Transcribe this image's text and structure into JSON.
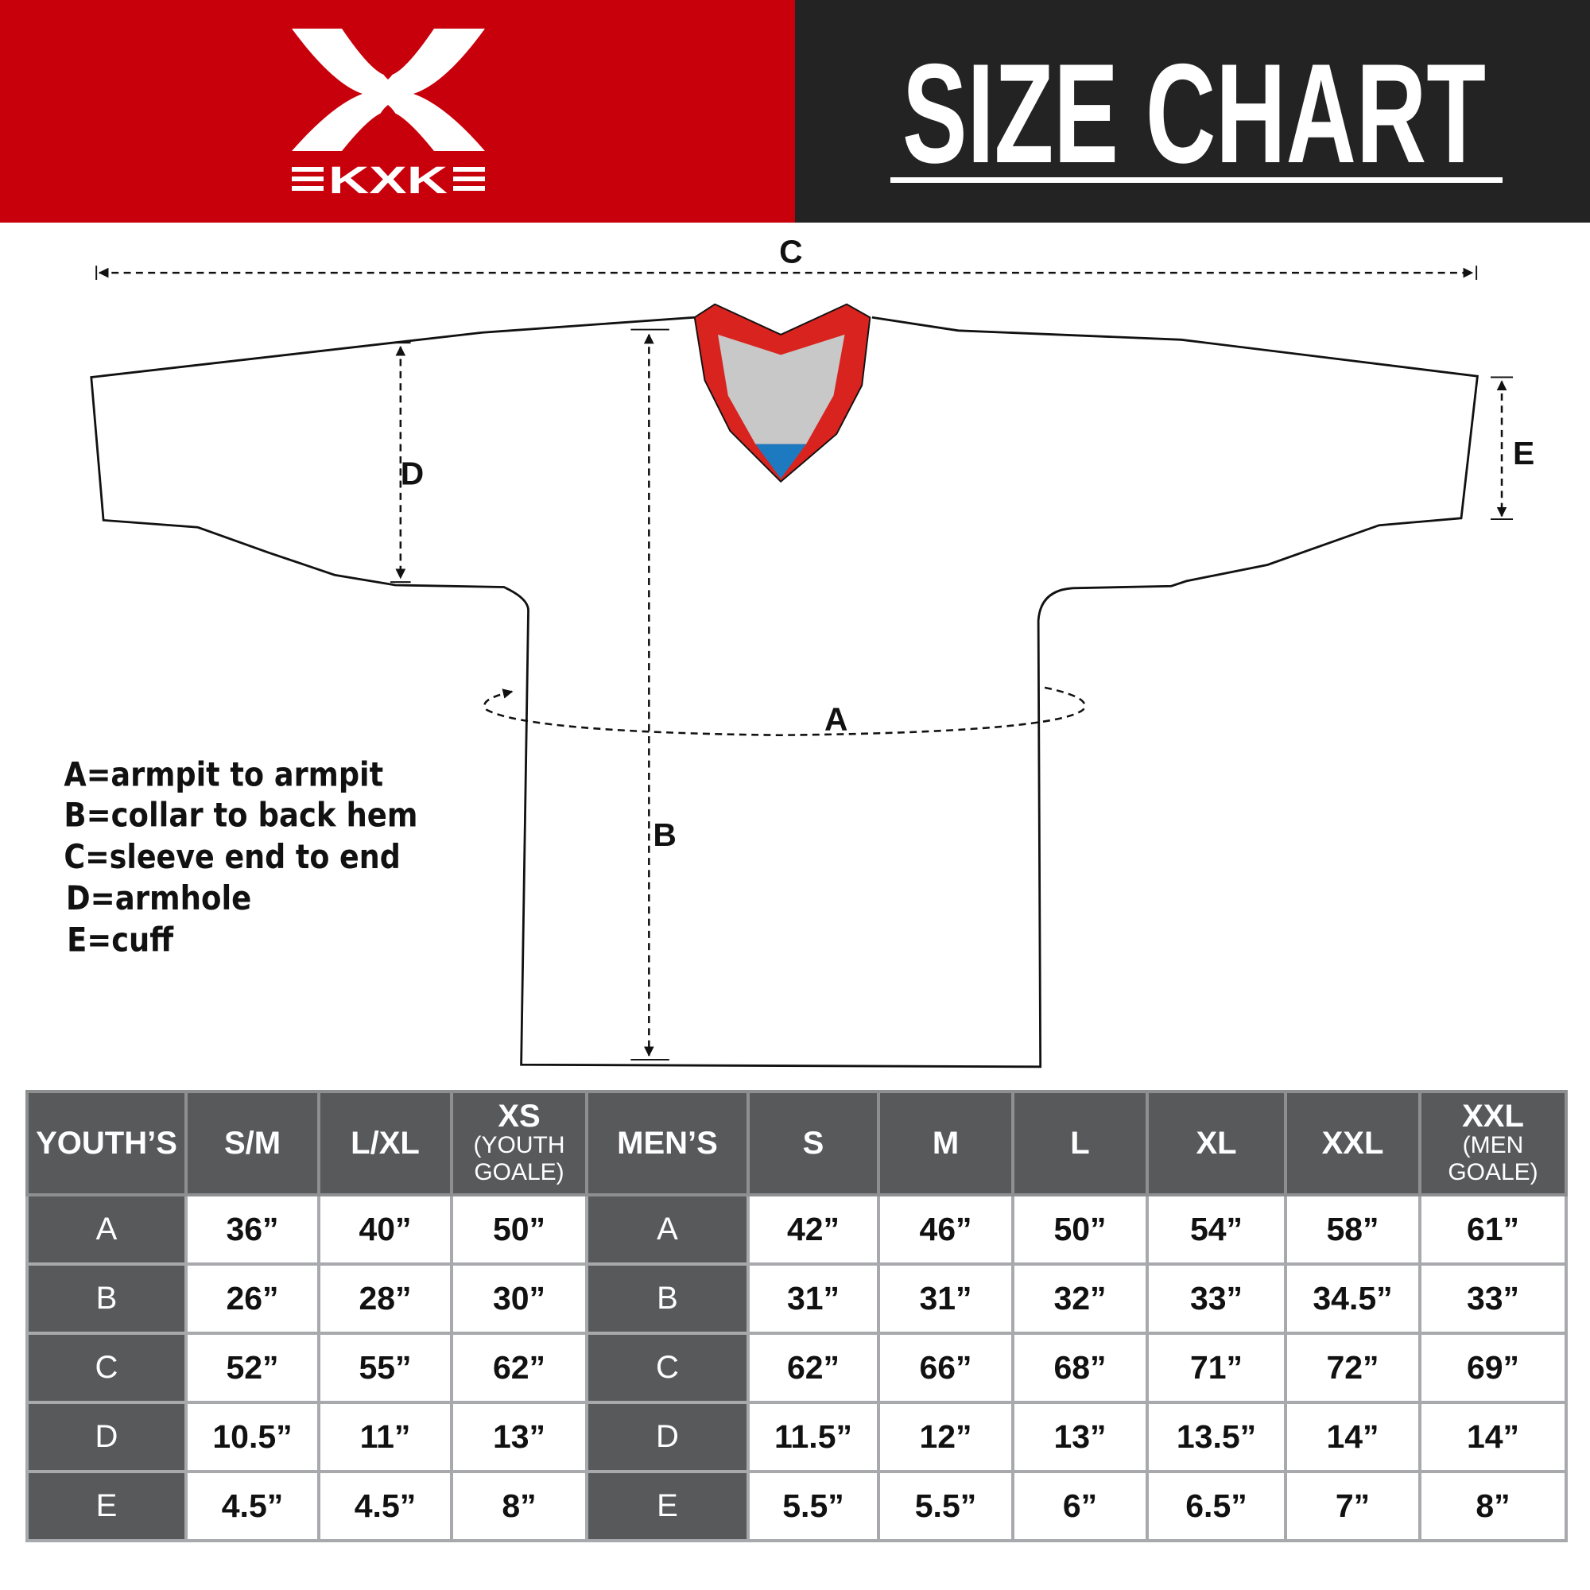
{
  "brand": {
    "logo_text": "KXK",
    "red": "#c8000b",
    "dark": "#232323"
  },
  "header": {
    "title": "SIZE CHART"
  },
  "diagram": {
    "labels": {
      "A": "A",
      "B": "B",
      "C": "C",
      "D": "D",
      "E": "E"
    },
    "collar_colors": {
      "trim": "#d8231f",
      "inner": "#c8c8c8",
      "tip": "#1e7ac0"
    }
  },
  "legend": [
    "A=armpit to armpit",
    "B=collar to back hem",
    "C=sleeve end to end",
    "D=armhole",
    "E=cuff"
  ],
  "table": {
    "youth_header": "YOUTH’S",
    "men_header": "MEN’S",
    "youth_sizes": [
      {
        "main": "S/M",
        "sub": ""
      },
      {
        "main": "L/XL",
        "sub": ""
      },
      {
        "main": "XS",
        "sub": "(YOUTH GOALE)"
      }
    ],
    "men_sizes": [
      {
        "main": "S",
        "sub": ""
      },
      {
        "main": "M",
        "sub": ""
      },
      {
        "main": "L",
        "sub": ""
      },
      {
        "main": "XL",
        "sub": ""
      },
      {
        "main": "XXL",
        "sub": ""
      },
      {
        "main": "XXL",
        "sub": "(MEN GOALE)"
      }
    ],
    "rows": [
      {
        "label": "A",
        "youth": [
          "36”",
          "40”",
          "50”"
        ],
        "men": [
          "42”",
          "46”",
          "50”",
          "54”",
          "58”",
          "61”"
        ]
      },
      {
        "label": "B",
        "youth": [
          "26”",
          "28”",
          "30”"
        ],
        "men": [
          "31”",
          "31”",
          "32”",
          "33”",
          "34.5”",
          "33”"
        ]
      },
      {
        "label": "C",
        "youth": [
          "52”",
          "55”",
          "62”"
        ],
        "men": [
          "62”",
          "66”",
          "68”",
          "71”",
          "72”",
          "69”"
        ]
      },
      {
        "label": "D",
        "youth": [
          "10.5”",
          "11”",
          "13”"
        ],
        "men": [
          "11.5”",
          "12”",
          "13”",
          "13.5”",
          "14”",
          "14”"
        ]
      },
      {
        "label": "E",
        "youth": [
          "4.5”",
          "4.5”",
          "8”"
        ],
        "men": [
          "5.5”",
          "5.5”",
          "6”",
          "6.5”",
          "7”",
          "8”"
        ]
      }
    ]
  }
}
